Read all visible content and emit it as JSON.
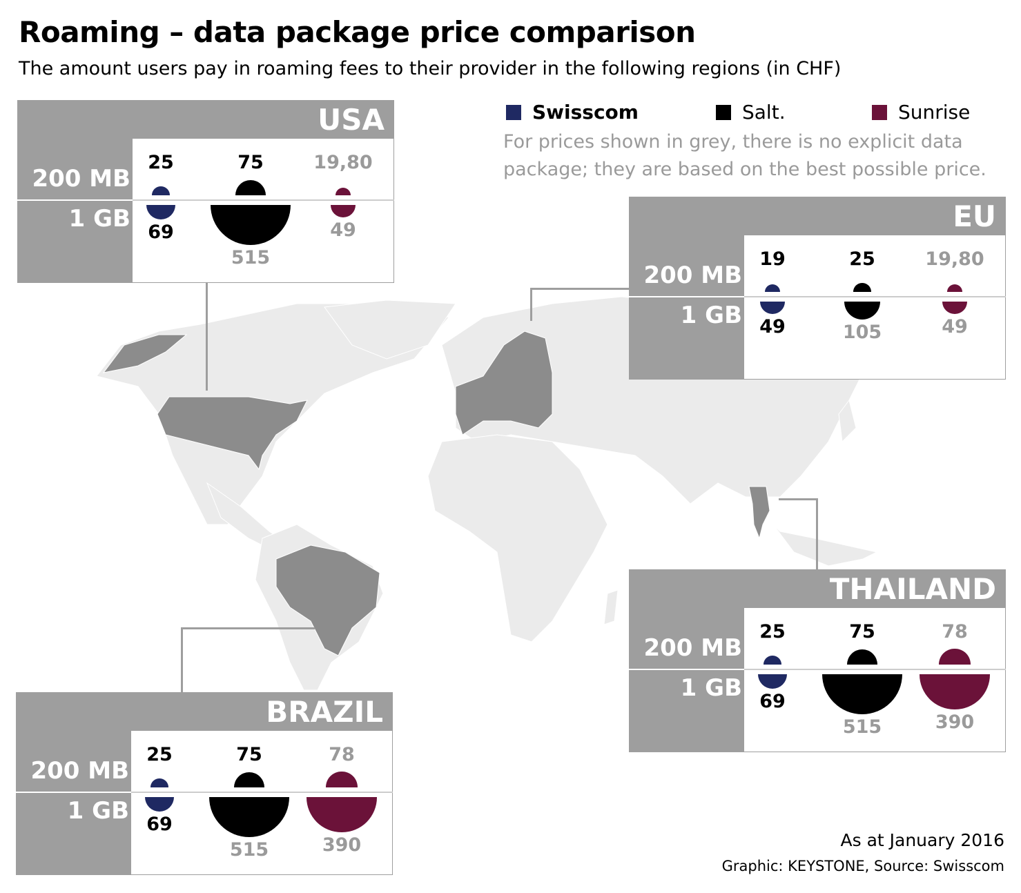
{
  "title": "Roaming – data package price comparison",
  "subtitle": "The amount users pay in roaming fees to their provider in the following regions (in CHF)",
  "legend": [
    {
      "label": "Swisscom",
      "color": "#1f2962",
      "bold": true
    },
    {
      "label": "Salt.",
      "color": "#000000",
      "bold": false
    },
    {
      "label": "Sunrise",
      "color": "#6b1239",
      "bold": false
    }
  ],
  "note": [
    "For prices shown in grey, there is no explicit data",
    "package; they are based on the best possible price."
  ],
  "footer": {
    "date": "As at January 2016",
    "credit": "Graphic: KEYSTONE, Source: Swisscom"
  },
  "colors": {
    "panel_grey": "#9e9e9e",
    "grey_text": "#9a9a9a",
    "map_land": "#ebebeb",
    "map_highlight": "#8c8c8c"
  },
  "chart_data": {
    "type": "proportional-half-circles",
    "title": "Roaming – data package price comparison",
    "unit": "CHF",
    "row_labels": [
      "200 MB",
      "1 GB"
    ],
    "providers": [
      "Swisscom",
      "Salt.",
      "Sunrise"
    ],
    "regions": [
      {
        "name": "USA",
        "values": {
          "200 MB": [
            "25",
            "75",
            "19,80"
          ],
          "1 GB": [
            "69",
            "515",
            "49"
          ]
        },
        "grey": {
          "200 MB": [
            false,
            false,
            true
          ],
          "1 GB": [
            false,
            true,
            true
          ]
        }
      },
      {
        "name": "EU",
        "values": {
          "200 MB": [
            "19",
            "25",
            "19,80"
          ],
          "1 GB": [
            "49",
            "105",
            "49"
          ]
        },
        "grey": {
          "200 MB": [
            false,
            false,
            true
          ],
          "1 GB": [
            false,
            true,
            true
          ]
        }
      },
      {
        "name": "THAILAND",
        "values": {
          "200 MB": [
            "25",
            "75",
            "78"
          ],
          "1 GB": [
            "69",
            "515",
            "390"
          ]
        },
        "grey": {
          "200 MB": [
            false,
            false,
            true
          ],
          "1 GB": [
            false,
            true,
            true
          ]
        }
      },
      {
        "name": "BRAZIL",
        "values": {
          "200 MB": [
            "25",
            "75",
            "78"
          ],
          "1 GB": [
            "69",
            "515",
            "390"
          ]
        },
        "grey": {
          "200 MB": [
            false,
            false,
            true
          ],
          "1 GB": [
            false,
            true,
            true
          ]
        }
      }
    ]
  }
}
